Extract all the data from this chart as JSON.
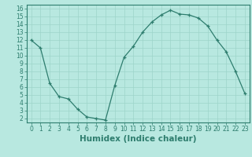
{
  "x": [
    0,
    1,
    2,
    3,
    4,
    5,
    6,
    7,
    8,
    9,
    10,
    11,
    12,
    13,
    14,
    15,
    16,
    17,
    18,
    19,
    20,
    21,
    22,
    23
  ],
  "y": [
    12,
    11,
    6.5,
    4.8,
    4.5,
    3.2,
    2.2,
    2.0,
    1.8,
    6.2,
    9.8,
    11.2,
    13.0,
    14.3,
    15.2,
    15.8,
    15.3,
    15.2,
    14.8,
    13.8,
    12.0,
    10.5,
    8.0,
    5.2
  ],
  "line_color": "#2e7d6e",
  "bg_color": "#b8e8e0",
  "grid_color": "#9dd4ca",
  "xlabel": "Humidex (Indice chaleur)",
  "xlim": [
    -0.5,
    23.5
  ],
  "ylim": [
    1.5,
    16.5
  ],
  "yticks": [
    2,
    3,
    4,
    5,
    6,
    7,
    8,
    9,
    10,
    11,
    12,
    13,
    14,
    15,
    16
  ],
  "xticks": [
    0,
    1,
    2,
    3,
    4,
    5,
    6,
    7,
    8,
    9,
    10,
    11,
    12,
    13,
    14,
    15,
    16,
    17,
    18,
    19,
    20,
    21,
    22,
    23
  ],
  "tick_label_fontsize": 5.5,
  "xlabel_fontsize": 7.5
}
